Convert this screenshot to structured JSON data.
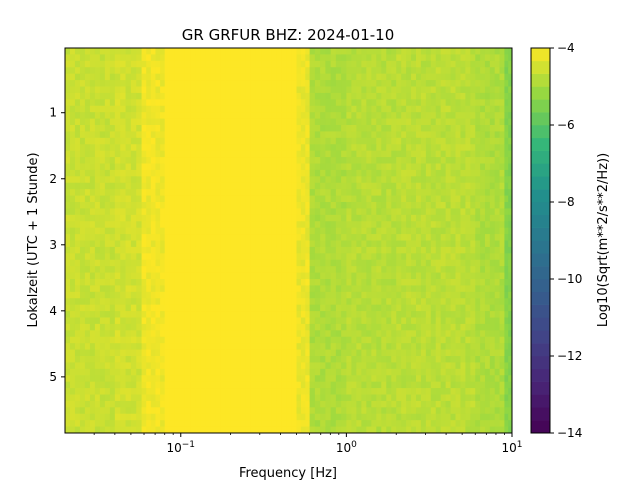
{
  "chart_data": {
    "type": "heatmap",
    "title": "GR GRFUR  BHZ: 2024-01-10",
    "xlabel": "Frequency [Hz]",
    "ylabel": "Lokalzeit (UTC + 1 Stunde)",
    "colorbar_label": "Log10(Sqrt(m**2/s**2/Hz))",
    "colormap": "viridis",
    "x_scale": "log",
    "xlim": [
      0.02,
      10
    ],
    "ylim": [
      5.85,
      0.02
    ],
    "y_inverted": true,
    "clim": [
      -14,
      -4
    ],
    "x_ticks": [
      {
        "value": 0.1,
        "label": "10",
        "exp": "−1"
      },
      {
        "value": 1,
        "label": "10",
        "exp": "0"
      },
      {
        "value": 10,
        "label": "10",
        "exp": "1"
      }
    ],
    "y_ticks": [
      {
        "value": 1,
        "label": "1"
      },
      {
        "value": 2,
        "label": "2"
      },
      {
        "value": 3,
        "label": "3"
      },
      {
        "value": 4,
        "label": "4"
      },
      {
        "value": 5,
        "label": "5"
      }
    ],
    "colorbar_ticks": [
      {
        "value": -4,
        "label": "−4"
      },
      {
        "value": -6,
        "label": "−6"
      },
      {
        "value": -8,
        "label": "−8"
      },
      {
        "value": -10,
        "label": "−10"
      },
      {
        "value": -12,
        "label": "−12"
      },
      {
        "value": -14,
        "label": "−14"
      }
    ],
    "frequency_bands": [
      {
        "f_min": 0.02,
        "f_max": 0.04,
        "log10_psd": -4.6
      },
      {
        "f_min": 0.04,
        "f_max": 0.058,
        "log10_psd": -4.5
      },
      {
        "f_min": 0.058,
        "f_max": 0.08,
        "log10_psd": -4.15
      },
      {
        "f_min": 0.08,
        "f_max": 0.5,
        "log10_psd": -4.0
      },
      {
        "f_min": 0.5,
        "f_max": 0.6,
        "log10_psd": -4.2
      },
      {
        "f_min": 0.6,
        "f_max": 1.0,
        "log10_psd": -4.9
      },
      {
        "f_min": 1.0,
        "f_max": 2.0,
        "log10_psd": -4.8
      },
      {
        "f_min": 2.0,
        "f_max": 6.0,
        "log10_psd": -4.75
      },
      {
        "f_min": 6.0,
        "f_max": 9.0,
        "log10_psd": -4.9
      },
      {
        "f_min": 9.0,
        "f_max": 10.0,
        "log10_psd": -5.4
      }
    ]
  }
}
